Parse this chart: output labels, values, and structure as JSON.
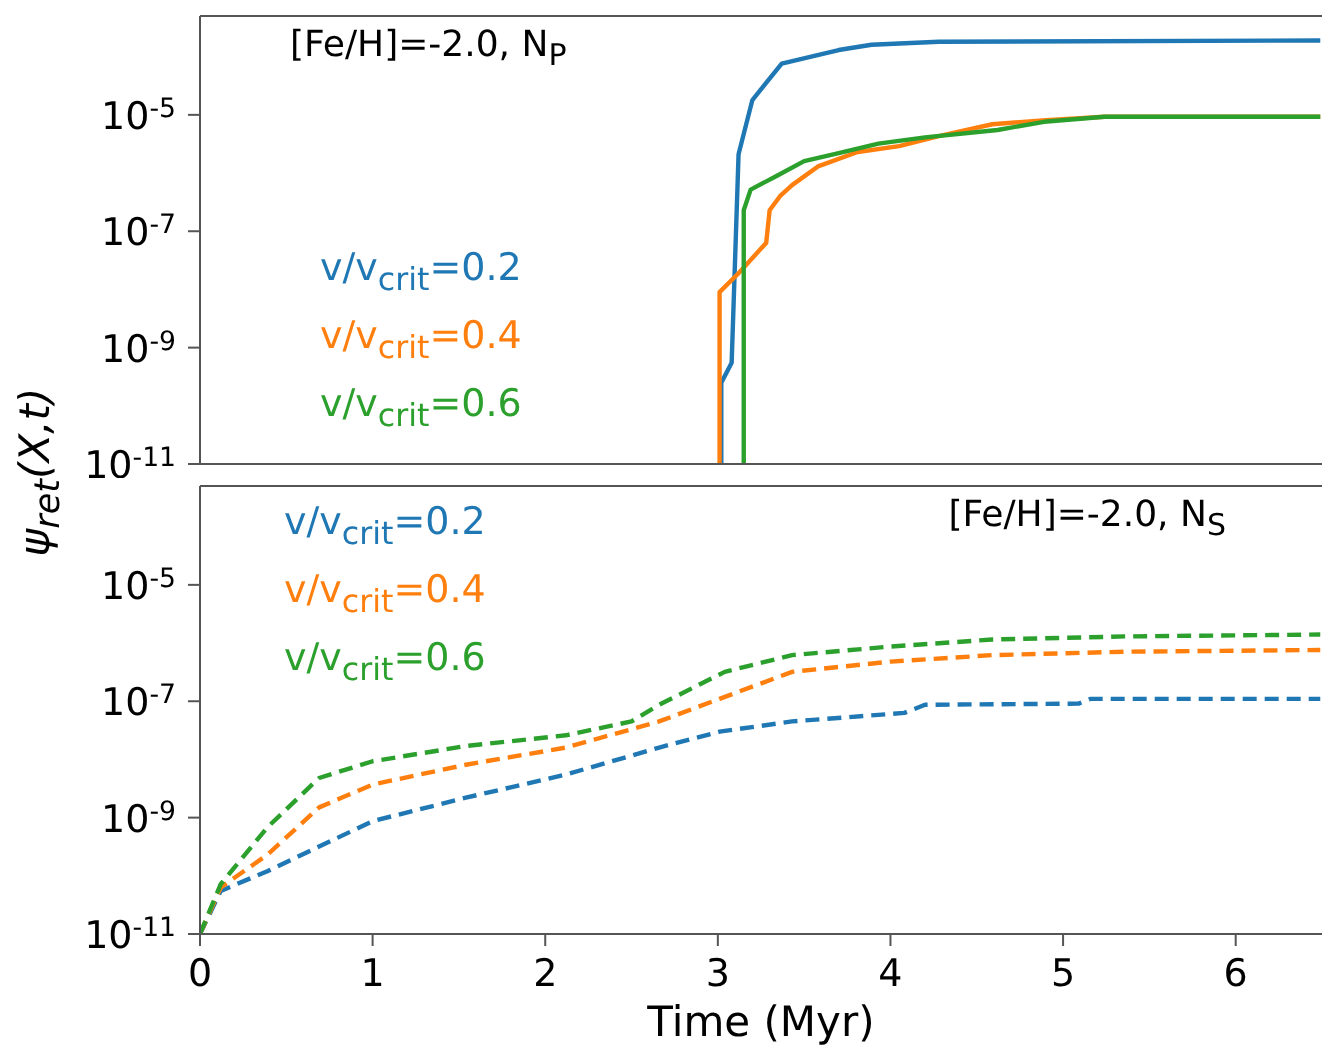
{
  "chart_data": [
    {
      "type": "line",
      "title": "[Fe/H]=-2.0, N$_{P}$",
      "ylabel": "ψ$_{ret}$(X,t)",
      "log": "y",
      "legend": "left",
      "line_style": "solid",
      "tick_labels": "y",
      "xlim": [
        0,
        6.5
      ],
      "xticks": [
        0,
        1,
        2,
        3,
        4,
        5,
        6
      ],
      "ylim": [
        1e-11,
        0.0005
      ],
      "yticks": [
        {
          "value": 1e-11,
          "label": "10$^{-11}$"
        },
        {
          "value": 1e-09,
          "label": "10$^{-9}$"
        },
        {
          "value": 1e-07,
          "label": "10$^{-7}$"
        },
        {
          "value": 1e-05,
          "label": "10$^{-5}$"
        }
      ],
      "series": [
        {
          "name": "v/v$_{crit}$=0.2",
          "color": "#1f77b4",
          "x": [
            3.02,
            3.02,
            3.08,
            3.12,
            3.2,
            3.37,
            3.7,
            3.89,
            4.28,
            6.49
          ],
          "values": [
            1e-11,
            2.5e-10,
            5.5e-10,
            2.1e-06,
            1.8e-05,
            7.6e-05,
            0.00013,
            0.00016,
            0.00018,
            0.00019
          ]
        },
        {
          "name": "v/v$_{crit}$=0.4",
          "color": "#ff7f0e",
          "x": [
            3.01,
            3.01,
            3.12,
            3.28,
            3.3,
            3.36,
            3.43,
            3.58,
            3.81,
            4.05,
            4.28,
            4.59,
            4.9,
            5.24,
            6.49
          ],
          "values": [
            1e-11,
            9e-09,
            1.9e-08,
            6.3e-08,
            2.3e-07,
            4e-07,
            6.2e-07,
            1.3e-06,
            2.3e-06,
            2.9e-06,
            4.3e-06,
            6.9e-06,
            8.1e-06,
            9.3e-06,
            9.3e-06
          ]
        },
        {
          "name": "v/v$_{crit}$=0.6",
          "color": "#2ca02c",
          "x": [
            3.15,
            3.15,
            3.19,
            3.34,
            3.5,
            3.7,
            3.93,
            4.2,
            4.62,
            4.89,
            5.24,
            6.49
          ],
          "values": [
            1e-11,
            2.3e-07,
            5.2e-07,
            8.9e-07,
            1.6e-06,
            2.2e-06,
            3.2e-06,
            4.1e-06,
            5.5e-06,
            7.6e-06,
            9.3e-06,
            9.3e-06
          ]
        }
      ]
    },
    {
      "type": "line",
      "title": "[Fe/H]=-2.0, N$_{S}$",
      "xlabel": "Time (Myr)",
      "log": "y",
      "legend": "top left",
      "line_style": "dashed",
      "xlim": [
        0,
        6.5
      ],
      "xticks": [
        0,
        1,
        2,
        3,
        4,
        5,
        6
      ],
      "ylim": [
        1e-11,
        0.0005
      ],
      "yticks": [
        {
          "value": 1e-11,
          "label": "10$^{-11}$"
        },
        {
          "value": 1e-09,
          "label": "10$^{-9}$"
        },
        {
          "value": 1e-07,
          "label": "10$^{-7}$"
        },
        {
          "value": 1e-05,
          "label": "10$^{-5}$"
        }
      ],
      "series": [
        {
          "name": "v/v$_{crit}$=0.2",
          "color": "#1f77b4",
          "x": [
            0,
            0.12,
            0.39,
            1.0,
            1.54,
            2.12,
            2.66,
            3.01,
            3.43,
            4.08,
            4.2,
            5.09,
            5.16,
            6.49
          ],
          "values": [
            1e-11,
            5.5e-11,
            1.2e-10,
            8.7e-10,
            2.2e-09,
            5.5e-09,
            1.6e-08,
            3e-08,
            4.5e-08,
            6.3e-08,
            8.7e-08,
            9.1e-08,
            1.1e-07,
            1.1e-07
          ]
        },
        {
          "name": "v/v$_{crit}$=0.4",
          "color": "#ff7f0e",
          "x": [
            0,
            0.12,
            0.39,
            0.69,
            1.0,
            1.54,
            2.12,
            2.66,
            3.01,
            3.43,
            4.0,
            4.59,
            5.36,
            6.49
          ],
          "values": [
            1e-11,
            6.3e-11,
            2.3e-10,
            1.5e-09,
            3.7e-09,
            8.1e-09,
            1.6e-08,
            4.5e-08,
            1.1e-07,
            3.2e-07,
            4.8e-07,
            6.2e-07,
            7.1e-07,
            7.6e-07
          ]
        },
        {
          "name": "v/v$_{crit}$=0.6",
          "color": "#2ca02c",
          "x": [
            0,
            0.12,
            0.39,
            0.69,
            1.0,
            1.54,
            2.12,
            2.5,
            2.66,
            3.04,
            3.43,
            4.0,
            4.59,
            5.36,
            6.49
          ],
          "values": [
            1e-11,
            7.2e-11,
            6.8e-10,
            4.8e-09,
            9.3e-09,
            1.7e-08,
            2.6e-08,
            4.5e-08,
            8.7e-08,
            3.2e-07,
            6.2e-07,
            8.7e-07,
            1.15e-06,
            1.3e-06,
            1.4e-06
          ]
        }
      ]
    }
  ]
}
